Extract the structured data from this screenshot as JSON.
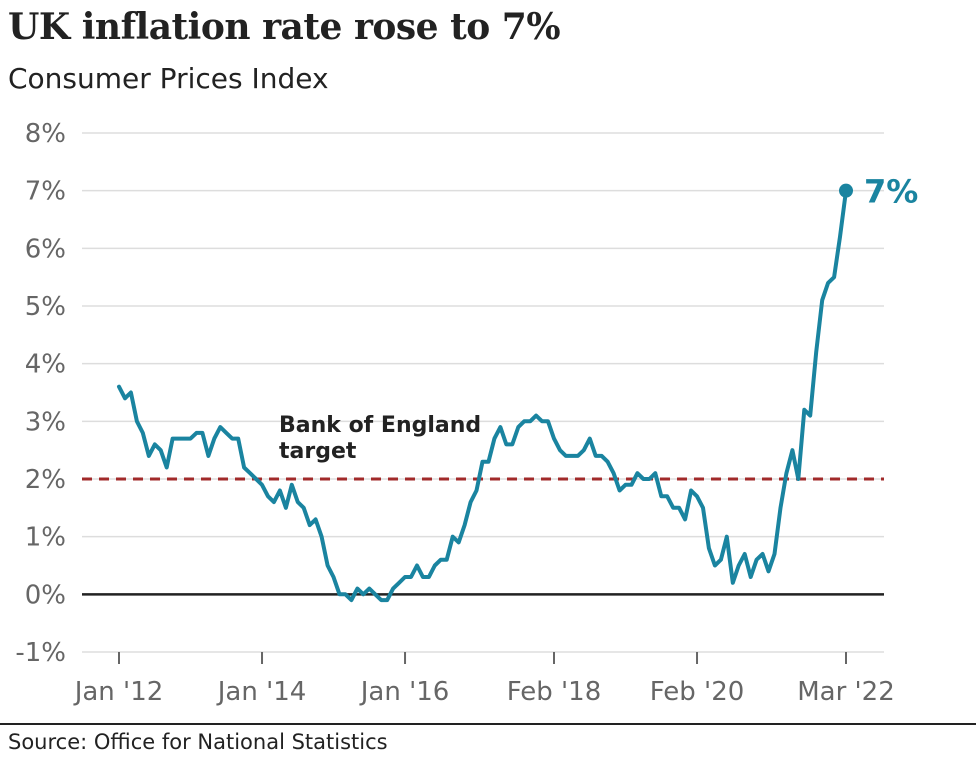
{
  "title": "UK inflation rate rose to 7%",
  "subtitle": "Consumer Prices Index",
  "source": "Source: Office for National Statistics",
  "colors": {
    "line": "#1a84a0",
    "target": "#a12a2a",
    "grid": "#dddddd",
    "zero": "#222222",
    "tick": "#666666"
  },
  "chart_data": {
    "type": "line",
    "title": "UK inflation rate rose to 7%",
    "subtitle": "Consumer Prices Index",
    "xlabel": "",
    "ylabel": "",
    "ylim": [
      -1,
      8
    ],
    "yticks": [
      8,
      7,
      6,
      5,
      4,
      3,
      2,
      1,
      0,
      -1
    ],
    "ytick_labels": [
      "8%",
      "7%",
      "6%",
      "5%",
      "4%",
      "3%",
      "2%",
      "1%",
      "0%",
      "-1%"
    ],
    "x_range": [
      "2012-01",
      "2022-03"
    ],
    "xticks": [
      {
        "date": "2012-01",
        "label": "Jan '12"
      },
      {
        "date": "2014-01",
        "label": "Jan '14"
      },
      {
        "date": "2016-01",
        "label": "Jan '16"
      },
      {
        "date": "2018-02",
        "label": "Feb '18"
      },
      {
        "date": "2020-02",
        "label": "Feb '20"
      },
      {
        "date": "2022-03",
        "label": "Mar '22"
      }
    ],
    "grid": true,
    "reference_line": {
      "y": 2,
      "style": "dashed",
      "label_line1": "Bank of England",
      "label_line2": "target"
    },
    "end_label": "7%",
    "series": [
      {
        "x": [
          "2012-01",
          "2012-02",
          "2012-03",
          "2012-04",
          "2012-05",
          "2012-06",
          "2012-07",
          "2012-08",
          "2012-09",
          "2012-10",
          "2012-11",
          "2012-12",
          "2013-01",
          "2013-02",
          "2013-03",
          "2013-04",
          "2013-05",
          "2013-06",
          "2013-07",
          "2013-08",
          "2013-09",
          "2013-10",
          "2013-11",
          "2013-12",
          "2014-01",
          "2014-02",
          "2014-03",
          "2014-04",
          "2014-05",
          "2014-06",
          "2014-07",
          "2014-08",
          "2014-09",
          "2014-10",
          "2014-11",
          "2014-12",
          "2015-01",
          "2015-02",
          "2015-03",
          "2015-04",
          "2015-05",
          "2015-06",
          "2015-07",
          "2015-08",
          "2015-09",
          "2015-10",
          "2015-11",
          "2015-12",
          "2016-01",
          "2016-02",
          "2016-03",
          "2016-04",
          "2016-05",
          "2016-06",
          "2016-07",
          "2016-08",
          "2016-09",
          "2016-10",
          "2016-11",
          "2016-12",
          "2017-01",
          "2017-02",
          "2017-03",
          "2017-04",
          "2017-05",
          "2017-06",
          "2017-07",
          "2017-08",
          "2017-09",
          "2017-10",
          "2017-11",
          "2017-12",
          "2018-01",
          "2018-02",
          "2018-03",
          "2018-04",
          "2018-05",
          "2018-06",
          "2018-07",
          "2018-08",
          "2018-09",
          "2018-10",
          "2018-11",
          "2018-12",
          "2019-01",
          "2019-02",
          "2019-03",
          "2019-04",
          "2019-05",
          "2019-06",
          "2019-07",
          "2019-08",
          "2019-09",
          "2019-10",
          "2019-11",
          "2019-12",
          "2020-01",
          "2020-02",
          "2020-03",
          "2020-04",
          "2020-05",
          "2020-06",
          "2020-07",
          "2020-08",
          "2020-09",
          "2020-10",
          "2020-11",
          "2020-12",
          "2021-01",
          "2021-02",
          "2021-03",
          "2021-04",
          "2021-05",
          "2021-06",
          "2021-07",
          "2021-08",
          "2021-09",
          "2021-10",
          "2021-11",
          "2021-12",
          "2022-01",
          "2022-02",
          "2022-03"
        ],
        "values": [
          3.6,
          3.4,
          3.5,
          3.0,
          2.8,
          2.4,
          2.6,
          2.5,
          2.2,
          2.7,
          2.7,
          2.7,
          2.7,
          2.8,
          2.8,
          2.4,
          2.7,
          2.9,
          2.8,
          2.7,
          2.7,
          2.2,
          2.1,
          2.0,
          1.9,
          1.7,
          1.6,
          1.8,
          1.5,
          1.9,
          1.6,
          1.5,
          1.2,
          1.3,
          1.0,
          0.5,
          0.3,
          0.0,
          0.0,
          -0.1,
          0.1,
          0.0,
          0.1,
          0.0,
          -0.1,
          -0.1,
          0.1,
          0.2,
          0.3,
          0.3,
          0.5,
          0.3,
          0.3,
          0.5,
          0.6,
          0.6,
          1.0,
          0.9,
          1.2,
          1.6,
          1.8,
          2.3,
          2.3,
          2.7,
          2.9,
          2.6,
          2.6,
          2.9,
          3.0,
          3.0,
          3.1,
          3.0,
          3.0,
          2.7,
          2.5,
          2.4,
          2.4,
          2.4,
          2.5,
          2.7,
          2.4,
          2.4,
          2.3,
          2.1,
          1.8,
          1.9,
          1.9,
          2.1,
          2.0,
          2.0,
          2.1,
          1.7,
          1.7,
          1.5,
          1.5,
          1.3,
          1.8,
          1.7,
          1.5,
          0.8,
          0.5,
          0.6,
          1.0,
          0.2,
          0.5,
          0.7,
          0.3,
          0.6,
          0.7,
          0.4,
          0.7,
          1.5,
          2.1,
          2.5,
          2.0,
          3.2,
          3.1,
          4.2,
          5.1,
          5.4,
          5.5,
          6.2,
          7.0
        ]
      }
    ]
  }
}
